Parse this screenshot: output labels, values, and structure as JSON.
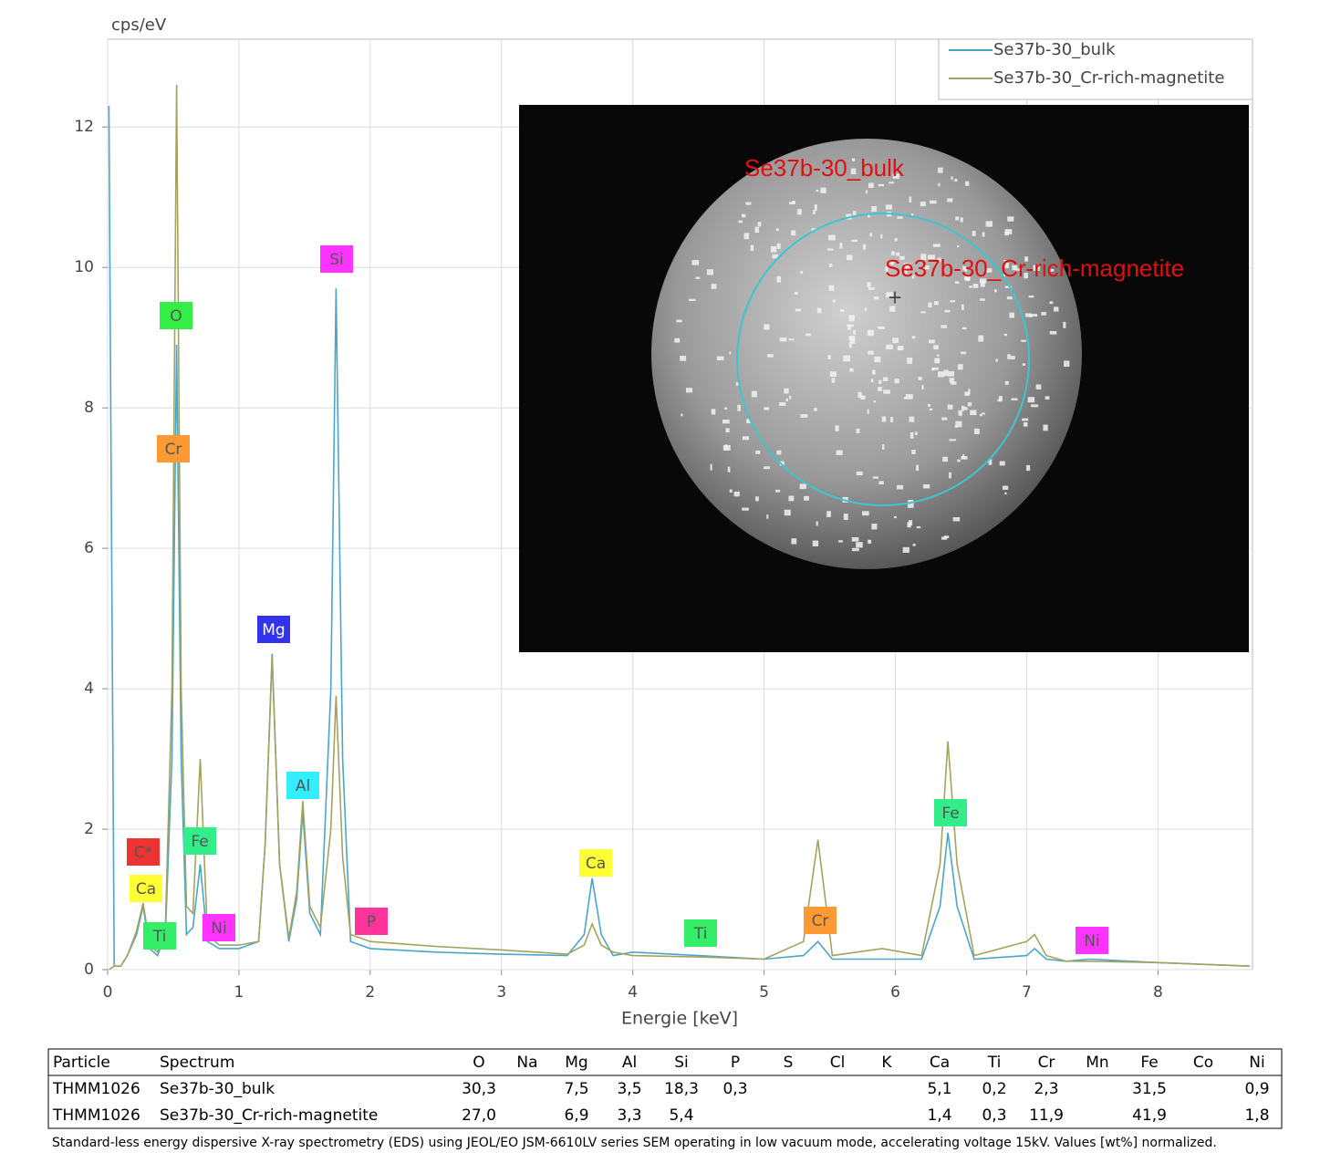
{
  "chart_data": {
    "type": "line",
    "y_label": "cps/eV",
    "x_label": "Energie [keV]",
    "xlim": [
      0,
      8.72
    ],
    "ylim": [
      0,
      13.25
    ],
    "xticks": [
      0,
      1,
      2,
      3,
      4,
      5,
      6,
      7,
      8
    ],
    "yticks": [
      0,
      2,
      4,
      6,
      8,
      10,
      12
    ],
    "grid": true,
    "legend": "top-right",
    "x": [
      0.01,
      0.05,
      0.1,
      0.15,
      0.22,
      0.27,
      0.32,
      0.38,
      0.44,
      0.49,
      0.525,
      0.56,
      0.6,
      0.65,
      0.705,
      0.76,
      0.85,
      1.0,
      1.15,
      1.2,
      1.253,
      1.31,
      1.38,
      1.44,
      1.486,
      1.54,
      1.62,
      1.7,
      1.74,
      1.79,
      1.85,
      2.0,
      2.5,
      3.0,
      3.5,
      3.63,
      3.69,
      3.76,
      3.85,
      4.0,
      4.5,
      5.0,
      5.3,
      5.41,
      5.52,
      5.9,
      6.2,
      6.34,
      6.4,
      6.47,
      6.6,
      7.0,
      7.06,
      7.15,
      7.3,
      7.48,
      8.0,
      8.7
    ],
    "series": [
      {
        "name": "Se37b-30_bulk",
        "color": "#4aa6c9",
        "values": [
          12.3,
          0.05,
          0.05,
          0.2,
          0.5,
          0.9,
          0.3,
          0.2,
          0.5,
          3.0,
          8.9,
          3.0,
          0.5,
          0.6,
          1.5,
          0.4,
          0.3,
          0.3,
          0.4,
          1.8,
          4.5,
          1.5,
          0.4,
          1.0,
          2.25,
          0.8,
          0.5,
          4.0,
          9.7,
          3.0,
          0.4,
          0.3,
          0.25,
          0.22,
          0.2,
          0.5,
          1.3,
          0.5,
          0.2,
          0.25,
          0.2,
          0.15,
          0.2,
          0.4,
          0.15,
          0.15,
          0.15,
          0.9,
          1.95,
          0.9,
          0.15,
          0.2,
          0.3,
          0.15,
          0.12,
          0.15,
          0.1,
          0.05
        ]
      },
      {
        "name": "Se37b-30_Cr-rich-magnetite",
        "color": "#a3a35e",
        "values": [
          0,
          0.05,
          0.05,
          0.2,
          0.55,
          0.95,
          0.35,
          0.25,
          0.6,
          4.0,
          12.6,
          4.0,
          0.9,
          0.8,
          3.0,
          0.5,
          0.35,
          0.35,
          0.4,
          1.8,
          4.45,
          1.5,
          0.45,
          1.1,
          2.4,
          0.9,
          0.6,
          2.0,
          3.9,
          1.6,
          0.5,
          0.4,
          0.33,
          0.28,
          0.22,
          0.35,
          0.65,
          0.35,
          0.25,
          0.2,
          0.18,
          0.15,
          0.4,
          1.85,
          0.2,
          0.3,
          0.2,
          1.5,
          3.25,
          1.5,
          0.2,
          0.4,
          0.5,
          0.2,
          0.12,
          0.12,
          0.1,
          0.05
        ]
      }
    ],
    "annotations": [
      {
        "text": "C*",
        "color": "#ee3333"
      },
      {
        "text": "Ca",
        "color": "#ffff33"
      },
      {
        "text": "Ti",
        "color": "#33ee66"
      },
      {
        "text": "O",
        "color": "#33ee44"
      },
      {
        "text": "Cr",
        "color": "#ff9933"
      },
      {
        "text": "Fe",
        "color": "#33ee88"
      },
      {
        "text": "Ni",
        "color": "#ff33ff"
      },
      {
        "text": "Mg",
        "color": "#3333ee"
      },
      {
        "text": "Al",
        "color": "#33eeff"
      },
      {
        "text": "Si",
        "color": "#ff33ff"
      },
      {
        "text": "P",
        "color": "#ff3399"
      },
      {
        "text": "Ca",
        "color": "#ffff33"
      },
      {
        "text": "Ti",
        "color": "#33ee66"
      },
      {
        "text": "Cr",
        "color": "#ff9933"
      },
      {
        "text": "Fe",
        "color": "#33ee88"
      },
      {
        "text": "Ni",
        "color": "#ff33ff"
      }
    ]
  },
  "table": {
    "header": [
      "Particle",
      "Spectrum",
      "O",
      "Na",
      "Mg",
      "Al",
      "Si",
      "P",
      "S",
      "Cl",
      "K",
      "Ca",
      "Ti",
      "Cr",
      "Mn",
      "Fe",
      "Co",
      "Ni"
    ],
    "rows": [
      [
        "THMM1026",
        "Se37b-30_bulk",
        "30,3",
        null,
        "7,5",
        "3,5",
        "18,3",
        "0,3",
        null,
        null,
        null,
        "5,1",
        "0,2",
        "2,3",
        null,
        "31,5",
        null,
        "0,9"
      ],
      [
        "THMM1026",
        "Se37b-30_Cr-rich-magnetite",
        "27,0",
        null,
        "6,9",
        "3,3",
        "5,4",
        null,
        null,
        null,
        null,
        "1,4",
        "0,3",
        "11,9",
        null,
        "41,9",
        null,
        "1,8"
      ]
    ]
  },
  "caption": "Standard-less energy dispersive X-ray spectrometry (EDS) using JEOL/EO JSM-6610LV series SEM operating in low vacuum mode, accelerating voltage 15kV. Values [wt%] normalized."
}
